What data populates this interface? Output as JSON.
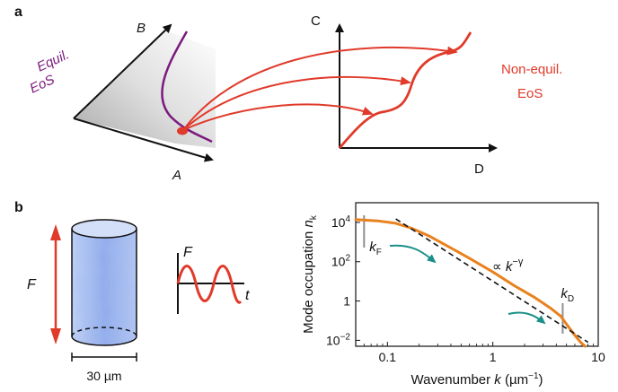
{
  "panel_a": {
    "label": "a",
    "axis_a": "A",
    "axis_b": "B",
    "axis_c": "C",
    "axis_d": "D",
    "equil_line1": "Equil.",
    "equil_line2": "EoS",
    "nonequil_line1": "Non-equil.",
    "nonequil_line2": "EoS",
    "colors": {
      "equil": "#7b1a7e",
      "nonequil": "#e03a2a",
      "axis": "#111111"
    }
  },
  "panel_b": {
    "label": "b",
    "force_label": "F",
    "drive_force_label": "F",
    "drive_time_label": "t",
    "scale_bar_label": "30 µm",
    "colors": {
      "cylinder": "#6f8fe0",
      "force_arrow": "#e03a2a",
      "drive": "#e03a2a"
    }
  },
  "chart_data": {
    "type": "line",
    "xlabel": "Wavenumber k (µm⁻¹)",
    "xlabel_parts": {
      "prefix": "Wavenumber ",
      "var": "k",
      "unit_open": " (µm",
      "unit_exp": "−1",
      "unit_close": ")"
    },
    "ylabel": "Mode occupation n_k",
    "ylabel_parts": {
      "prefix": "Mode occupation ",
      "var": "n",
      "sub": "k"
    },
    "x_scale": "log",
    "y_scale": "log",
    "xlim": [
      0.05,
      10
    ],
    "ylim": [
      0.005,
      100000
    ],
    "x_ticks": [
      0.1,
      1,
      10
    ],
    "x_tick_labels": [
      "0.1",
      "1",
      "10"
    ],
    "y_ticks": [
      0.01,
      1,
      100,
      10000
    ],
    "y_tick_labels": [
      {
        "base": "10",
        "exp": "−2"
      },
      {
        "base": "1",
        "exp": ""
      },
      {
        "base": "10",
        "exp": "2"
      },
      {
        "base": "10",
        "exp": "4"
      }
    ],
    "series": [
      {
        "color": "#e8821e",
        "x": [
          0.05,
          0.08,
          0.12,
          0.17,
          0.25,
          0.4,
          0.6,
          1.0,
          1.6,
          2.5,
          3.5,
          4.4,
          5.2,
          6.0,
          6.8,
          7.5
        ],
        "y": [
          14000,
          12000,
          9000,
          5000,
          2000,
          500,
          150,
          30,
          6,
          1.5,
          0.45,
          0.17,
          0.05,
          0.018,
          0.008,
          0.005
        ]
      }
    ],
    "fit_line": {
      "x": [
        0.12,
        8.0
      ],
      "y": [
        15000,
        0.008
      ],
      "style": "dashed",
      "color": "#111111"
    },
    "fit_label": {
      "prefix": "∝ ",
      "var": "k",
      "exp": "−γ"
    },
    "markers": [
      {
        "name": "k_F",
        "var": "k",
        "sub": "F",
        "x": 0.06
      },
      {
        "name": "k_D",
        "var": "k",
        "sub": "D",
        "x": 4.6
      }
    ],
    "marker_color": "#909090",
    "teal_arrow_color": "#1b8f8a"
  }
}
